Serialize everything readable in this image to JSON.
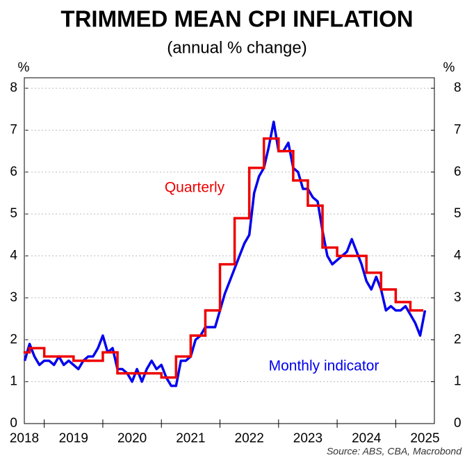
{
  "chart_data": {
    "type": "line",
    "title": "TRIMMED MEAN CPI INFLATION",
    "subtitle": "(annual % change)",
    "y_unit_left": "%",
    "y_unit_right": "%",
    "source": "Source: ABS, CBA, Macrobond",
    "annotations": [
      {
        "text": "Quarterly",
        "color": "#ee0000"
      },
      {
        "text": "Monthly indicator",
        "color": "#0000ee"
      }
    ],
    "xlim": [
      2018.66,
      2025.66
    ],
    "xticks": [
      2019,
      2020,
      2021,
      2022,
      2023,
      2024,
      2025
    ],
    "xticklabels": [
      {
        "value": 2018.5,
        "label": "2018"
      },
      {
        "value": 2019.5,
        "label": "2019"
      },
      {
        "value": 2020.5,
        "label": "2020"
      },
      {
        "value": 2021.5,
        "label": "2021"
      },
      {
        "value": 2022.5,
        "label": "2022"
      },
      {
        "value": 2023.5,
        "label": "2023"
      },
      {
        "value": 2024.5,
        "label": "2024"
      },
      {
        "value": 2025.5,
        "label": "2025"
      }
    ],
    "ylim": [
      0,
      8.25
    ],
    "yticks": [
      0,
      1,
      2,
      3,
      4,
      5,
      6,
      7,
      8
    ],
    "y2lim": [
      0,
      8.25
    ],
    "y2ticks": [
      0,
      1,
      2,
      3,
      4,
      5,
      6,
      7,
      8
    ],
    "grid": true,
    "series": [
      {
        "name": "Monthly indicator",
        "color": "#0000ee",
        "style": "line",
        "x": [
          2018.667,
          2018.75,
          2018.833,
          2018.917,
          2019,
          2019.083,
          2019.167,
          2019.25,
          2019.333,
          2019.417,
          2019.5,
          2019.583,
          2019.667,
          2019.75,
          2019.833,
          2019.917,
          2020,
          2020.083,
          2020.167,
          2020.25,
          2020.333,
          2020.417,
          2020.5,
          2020.583,
          2020.667,
          2020.75,
          2020.833,
          2020.917,
          2021,
          2021.083,
          2021.167,
          2021.25,
          2021.333,
          2021.417,
          2021.5,
          2021.583,
          2021.667,
          2021.75,
          2021.833,
          2021.917,
          2022,
          2022.083,
          2022.167,
          2022.25,
          2022.333,
          2022.417,
          2022.5,
          2022.583,
          2022.667,
          2022.75,
          2022.833,
          2022.917,
          2023,
          2023.083,
          2023.167,
          2023.25,
          2023.333,
          2023.417,
          2023.5,
          2023.583,
          2023.667,
          2023.75,
          2023.833,
          2023.917,
          2024,
          2024.083,
          2024.167,
          2024.25,
          2024.333,
          2024.417,
          2024.5,
          2024.583,
          2024.667,
          2024.75,
          2024.833,
          2024.917,
          2025,
          2025.083,
          2025.167,
          2025.25,
          2025.333,
          2025.417,
          2025.5
        ],
        "values": [
          1.5,
          1.9,
          1.6,
          1.4,
          1.5,
          1.5,
          1.4,
          1.6,
          1.4,
          1.5,
          1.4,
          1.3,
          1.5,
          1.6,
          1.6,
          1.8,
          2.1,
          1.7,
          1.8,
          1.3,
          1.3,
          1.2,
          1.0,
          1.3,
          1.0,
          1.3,
          1.5,
          1.3,
          1.4,
          1.1,
          0.9,
          0.9,
          1.5,
          1.5,
          1.6,
          2.0,
          2.1,
          2.3,
          2.3,
          2.3,
          2.7,
          3.1,
          3.4,
          3.7,
          4.0,
          4.3,
          4.5,
          5.5,
          5.9,
          6.1,
          6.6,
          7.2,
          6.5,
          6.5,
          6.7,
          6.1,
          6.0,
          5.6,
          5.6,
          5.4,
          5.3,
          4.6,
          4.0,
          3.8,
          3.9,
          4.0,
          4.1,
          4.4,
          4.1,
          3.8,
          3.4,
          3.2,
          3.5,
          3.2,
          2.7,
          2.8,
          2.7,
          2.7,
          2.8,
          2.6,
          2.4,
          2.1,
          2.7
        ]
      },
      {
        "name": "Quarterly",
        "color": "#ee0000",
        "style": "step",
        "x": [
          2018.667,
          2018.75,
          2019,
          2019.25,
          2019.5,
          2019.75,
          2020,
          2020.25,
          2020.5,
          2020.75,
          2021,
          2021.25,
          2021.5,
          2021.75,
          2022,
          2022.25,
          2022.5,
          2022.75,
          2023,
          2023.25,
          2023.5,
          2023.75,
          2024,
          2024.25,
          2024.5,
          2024.75,
          2025,
          2025.25
        ],
        "x_end": [
          2018.75,
          2019,
          2019.25,
          2019.5,
          2019.75,
          2020,
          2020.25,
          2020.5,
          2020.75,
          2021,
          2021.25,
          2021.5,
          2021.75,
          2022,
          2022.25,
          2022.5,
          2022.75,
          2023,
          2023.25,
          2023.5,
          2023.75,
          2024,
          2024.25,
          2024.5,
          2024.75,
          2025,
          2025.25,
          2025.45
        ],
        "values": [
          1.7,
          1.8,
          1.6,
          1.6,
          1.5,
          1.5,
          1.7,
          1.2,
          1.2,
          1.2,
          1.1,
          1.6,
          2.1,
          2.7,
          3.8,
          4.9,
          6.1,
          6.8,
          6.5,
          5.8,
          5.2,
          4.2,
          4.0,
          4.0,
          3.6,
          3.2,
          2.9,
          2.7
        ]
      }
    ]
  }
}
